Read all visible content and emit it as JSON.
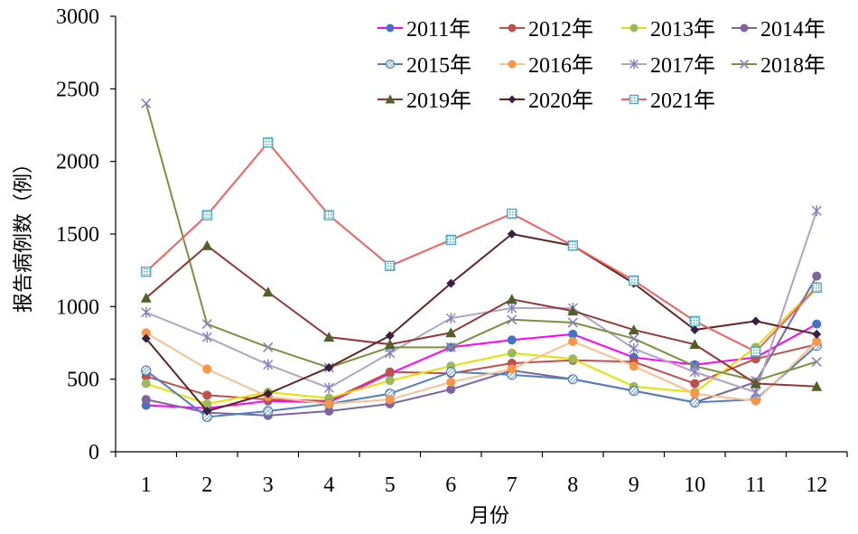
{
  "chart_data": {
    "type": "line",
    "title": "",
    "xlabel": "月份",
    "ylabel": "报告病例数（例）",
    "x": [
      1,
      2,
      3,
      4,
      5,
      6,
      7,
      8,
      9,
      10,
      11,
      12
    ],
    "ylim": [
      0,
      3000
    ],
    "yticks": [
      0,
      500,
      1000,
      1500,
      2000,
      2500,
      3000
    ],
    "grid": false,
    "legend_position": "top-right",
    "series": [
      {
        "name": "2011年",
        "color": "#4472C4",
        "line_color": "#FF00FF",
        "marker": "circle",
        "values": [
          320,
          300,
          350,
          340,
          540,
          720,
          770,
          810,
          650,
          600,
          650,
          880
        ]
      },
      {
        "name": "2012年",
        "color": "#C0504D",
        "line_color": "#C0504D",
        "marker": "circle",
        "values": [
          520,
          390,
          360,
          350,
          550,
          540,
          610,
          630,
          620,
          470,
          640,
          740
        ]
      },
      {
        "name": "2013年",
        "color": "#9BBB59",
        "line_color": "#E3E300",
        "marker": "circle",
        "values": [
          470,
          330,
          410,
          370,
          490,
          590,
          680,
          640,
          450,
          410,
          720,
          1140
        ]
      },
      {
        "name": "2014年",
        "color": "#8064A2",
        "line_color": "#8064A2",
        "marker": "circle",
        "values": [
          360,
          270,
          250,
          280,
          330,
          430,
          560,
          500,
          420,
          340,
          480,
          1210
        ]
      },
      {
        "name": "2015年",
        "color": "#4F81BD",
        "line_color": "#4F81BD",
        "marker": "hatched-circle",
        "values": [
          560,
          240,
          280,
          330,
          400,
          550,
          530,
          500,
          420,
          340,
          360,
          730
        ]
      },
      {
        "name": "2016年",
        "color": "#F79646",
        "line_color": "#FAC090",
        "marker": "circle",
        "values": [
          820,
          570,
          380,
          330,
          360,
          480,
          570,
          760,
          590,
          400,
          350,
          760
        ]
      },
      {
        "name": "2017年",
        "color": "#7F7FBF",
        "line_color": "#B3A2C7",
        "marker": "star",
        "values": [
          960,
          790,
          600,
          440,
          680,
          920,
          990,
          990,
          710,
          550,
          410,
          1660
        ]
      },
      {
        "name": "2018年",
        "color": "#8E7CC3",
        "line_color": "#77933C",
        "marker": "x",
        "values": [
          2400,
          880,
          720,
          580,
          720,
          720,
          910,
          890,
          780,
          590,
          490,
          620
        ]
      },
      {
        "name": "2019年",
        "color": "#4F6228",
        "line_color": "#953735",
        "marker": "triangle",
        "values": [
          1060,
          1420,
          1100,
          790,
          740,
          820,
          1050,
          970,
          840,
          740,
          470,
          450
        ]
      },
      {
        "name": "2020年",
        "color": "#3B1E44",
        "line_color": "#632523",
        "marker": "diamond",
        "values": [
          780,
          280,
          400,
          580,
          800,
          1160,
          1500,
          1420,
          1160,
          840,
          900,
          810
        ]
      },
      {
        "name": "2021年",
        "color": "#4BACC6",
        "line_color": "#F2615C",
        "marker": "square",
        "values": [
          1240,
          1630,
          2130,
          1630,
          1280,
          1460,
          1640,
          1420,
          1180,
          900,
          690,
          1130
        ]
      }
    ]
  }
}
